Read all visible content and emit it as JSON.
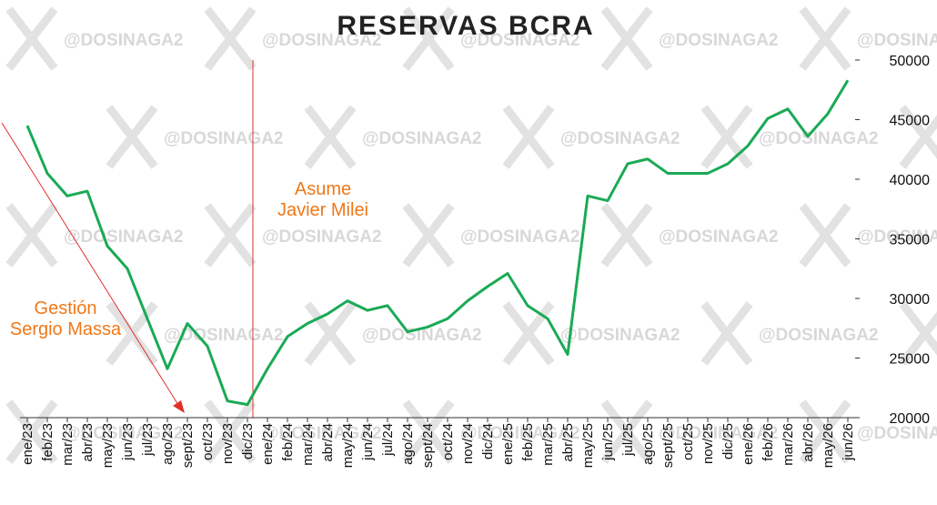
{
  "chart_data": {
    "type": "line",
    "title": "RESERVAS BCRA",
    "watermark": "@DOSINAGA2",
    "categories": [
      "ene/23",
      "feb/23",
      "mar/23",
      "abr/23",
      "may/23",
      "jun/23",
      "jul/23",
      "ago/23",
      "sept/23",
      "oct/23",
      "nov/23",
      "dic/23",
      "ene/24",
      "feb/24",
      "mar/24",
      "abr/24",
      "may/24",
      "jun/24",
      "jul/24",
      "ago/24",
      "sept/24",
      "oct/24",
      "nov/24",
      "dic/24",
      "ene/25",
      "feb/25",
      "mar/25",
      "abr/25",
      "may/25",
      "jun/25",
      "jul/25",
      "ago/25",
      "sept/25",
      "oct/25",
      "nov/25",
      "dic/25",
      "ene/26",
      "feb/26",
      "mar/26",
      "abr/26",
      "may/26",
      "jun/26"
    ],
    "series": [
      {
        "name": "Reservas",
        "color": "#1aaa55",
        "values": [
          44500,
          40500,
          38600,
          39000,
          34400,
          32500,
          28300,
          24100,
          27900,
          26000,
          21400,
          21100,
          24100,
          26800,
          27900,
          28700,
          29800,
          29000,
          29400,
          27200,
          27600,
          28300,
          29800,
          31000,
          32100,
          29400,
          28300,
          25300,
          38600,
          38200,
          41300,
          41700,
          40500,
          40500,
          40500,
          41300,
          42800,
          45100,
          45900,
          43600,
          45500,
          48300
        ]
      }
    ],
    "ylim": [
      20000,
      50000
    ],
    "yticks": [
      20000,
      25000,
      30000,
      35000,
      40000,
      45000,
      50000
    ],
    "annotations": [
      {
        "text": "Asume\nJavier Milei"
      },
      {
        "text": "Gestión\nSergio Massa"
      }
    ]
  }
}
